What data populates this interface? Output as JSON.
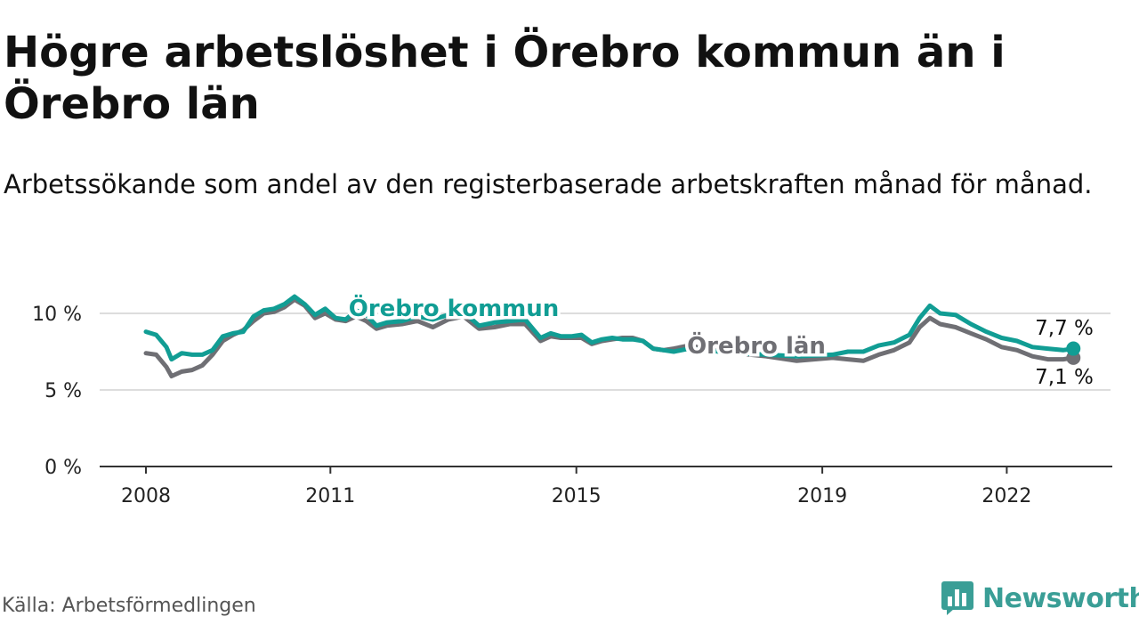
{
  "title": "Högre arbetslöshet i Örebro kommun än i Örebro län",
  "subtitle": "Arbetssökande som andel av den registerbaserade arbetskraften månad för månad.",
  "source": "Källa: Arbetsförmedlingen",
  "brand": "Newsworthy",
  "colors": {
    "kommun": "#119d94",
    "lan": "#6f6f74",
    "grid": "#dddddd",
    "axis": "#333333",
    "brand": "#3a9e96"
  },
  "chart_data": {
    "type": "line",
    "title": "Högre arbetslöshet i Örebro kommun än i Örebro län",
    "subtitle": "Arbetssökande som andel av den registerbaserade arbetskraften månad för månad.",
    "xlabel": "",
    "ylabel": "",
    "x_ticks": [
      "2008",
      "2011",
      "2015",
      "2019",
      "2022"
    ],
    "y_ticks": [
      "0 %",
      "5 %",
      "10 %"
    ],
    "ylim": [
      0,
      12
    ],
    "grid": true,
    "series": [
      {
        "name": "Örebro kommun",
        "end_label": "7,7 %",
        "points": [
          [
            "2008-01",
            8.8
          ],
          [
            "2008-03",
            8.6
          ],
          [
            "2008-05",
            7.8
          ],
          [
            "2008-06",
            7.0
          ],
          [
            "2008-08",
            7.4
          ],
          [
            "2008-10",
            7.3
          ],
          [
            "2008-12",
            7.3
          ],
          [
            "2009-02",
            7.6
          ],
          [
            "2009-04",
            8.5
          ],
          [
            "2009-06",
            8.7
          ],
          [
            "2009-08",
            8.8
          ],
          [
            "2009-10",
            9.8
          ],
          [
            "2009-12",
            10.2
          ],
          [
            "2010-02",
            10.3
          ],
          [
            "2010-04",
            10.6
          ],
          [
            "2010-06",
            11.1
          ],
          [
            "2010-08",
            10.6
          ],
          [
            "2010-10",
            9.9
          ],
          [
            "2010-12",
            10.3
          ],
          [
            "2011-02",
            9.7
          ],
          [
            "2011-04",
            9.6
          ],
          [
            "2011-06",
            10.2
          ],
          [
            "2011-08",
            9.9
          ],
          [
            "2011-10",
            9.2
          ],
          [
            "2011-12",
            9.4
          ],
          [
            "2012-03",
            9.5
          ],
          [
            "2012-06",
            9.8
          ],
          [
            "2012-09",
            9.6
          ],
          [
            "2012-12",
            9.9
          ],
          [
            "2013-03",
            10.1
          ],
          [
            "2013-06",
            9.2
          ],
          [
            "2013-09",
            9.4
          ],
          [
            "2013-12",
            9.5
          ],
          [
            "2014-03",
            9.6
          ],
          [
            "2014-06",
            8.4
          ],
          [
            "2014-08",
            8.7
          ],
          [
            "2014-10",
            8.5
          ],
          [
            "2014-12",
            8.5
          ],
          [
            "2015-02",
            8.6
          ],
          [
            "2015-04",
            8.1
          ],
          [
            "2015-06",
            8.3
          ],
          [
            "2015-08",
            8.4
          ],
          [
            "2015-10",
            8.3
          ],
          [
            "2015-12",
            8.3
          ],
          [
            "2016-02",
            8.2
          ],
          [
            "2016-04",
            7.7
          ],
          [
            "2016-06",
            7.6
          ],
          [
            "2016-08",
            7.5
          ],
          [
            "2016-11",
            7.7
          ],
          [
            "2017-02",
            7.6
          ],
          [
            "2017-08",
            7.4
          ],
          [
            "2018-02",
            7.3
          ],
          [
            "2018-08",
            7.2
          ],
          [
            "2019-03",
            7.3
          ],
          [
            "2019-06",
            7.5
          ],
          [
            "2019-09",
            7.5
          ],
          [
            "2019-12",
            7.9
          ],
          [
            "2020-03",
            8.1
          ],
          [
            "2020-06",
            8.6
          ],
          [
            "2020-08",
            9.7
          ],
          [
            "2020-10",
            10.5
          ],
          [
            "2020-12",
            10.0
          ],
          [
            "2021-03",
            9.9
          ],
          [
            "2021-06",
            9.3
          ],
          [
            "2021-09",
            8.8
          ],
          [
            "2021-12",
            8.4
          ],
          [
            "2022-03",
            8.2
          ],
          [
            "2022-06",
            7.8
          ],
          [
            "2022-09",
            7.7
          ],
          [
            "2022-12",
            7.6
          ],
          [
            "2023-02",
            7.7
          ]
        ]
      },
      {
        "name": "Örebro län",
        "end_label": "7,1 %",
        "points": [
          [
            "2008-01",
            7.4
          ],
          [
            "2008-03",
            7.3
          ],
          [
            "2008-05",
            6.5
          ],
          [
            "2008-06",
            5.9
          ],
          [
            "2008-08",
            6.2
          ],
          [
            "2008-10",
            6.3
          ],
          [
            "2008-12",
            6.6
          ],
          [
            "2009-02",
            7.3
          ],
          [
            "2009-04",
            8.2
          ],
          [
            "2009-06",
            8.6
          ],
          [
            "2009-08",
            8.9
          ],
          [
            "2009-10",
            9.5
          ],
          [
            "2009-12",
            10.0
          ],
          [
            "2010-02",
            10.1
          ],
          [
            "2010-04",
            10.4
          ],
          [
            "2010-06",
            10.9
          ],
          [
            "2010-08",
            10.5
          ],
          [
            "2010-10",
            9.7
          ],
          [
            "2010-12",
            10.0
          ],
          [
            "2011-02",
            9.6
          ],
          [
            "2011-04",
            9.5
          ],
          [
            "2011-06",
            9.8
          ],
          [
            "2011-08",
            9.5
          ],
          [
            "2011-10",
            9.0
          ],
          [
            "2011-12",
            9.2
          ],
          [
            "2012-03",
            9.3
          ],
          [
            "2012-06",
            9.5
          ],
          [
            "2012-09",
            9.1
          ],
          [
            "2012-12",
            9.6
          ],
          [
            "2013-03",
            9.8
          ],
          [
            "2013-06",
            9.0
          ],
          [
            "2013-09",
            9.1
          ],
          [
            "2013-12",
            9.3
          ],
          [
            "2014-03",
            9.3
          ],
          [
            "2014-06",
            8.2
          ],
          [
            "2014-08",
            8.5
          ],
          [
            "2014-10",
            8.4
          ],
          [
            "2014-12",
            8.4
          ],
          [
            "2015-02",
            8.4
          ],
          [
            "2015-04",
            8.0
          ],
          [
            "2015-06",
            8.2
          ],
          [
            "2015-08",
            8.3
          ],
          [
            "2015-10",
            8.4
          ],
          [
            "2015-12",
            8.4
          ],
          [
            "2016-02",
            8.2
          ],
          [
            "2016-04",
            7.7
          ],
          [
            "2016-06",
            7.6
          ],
          [
            "2016-08",
            7.7
          ],
          [
            "2016-11",
            7.9
          ],
          [
            "2017-02",
            7.7
          ],
          [
            "2017-08",
            7.4
          ],
          [
            "2018-02",
            7.2
          ],
          [
            "2018-08",
            6.9
          ],
          [
            "2019-03",
            7.1
          ],
          [
            "2019-06",
            7.0
          ],
          [
            "2019-09",
            6.9
          ],
          [
            "2019-12",
            7.3
          ],
          [
            "2020-03",
            7.6
          ],
          [
            "2020-06",
            8.1
          ],
          [
            "2020-08",
            9.1
          ],
          [
            "2020-10",
            9.7
          ],
          [
            "2020-12",
            9.3
          ],
          [
            "2021-03",
            9.1
          ],
          [
            "2021-06",
            8.7
          ],
          [
            "2021-09",
            8.3
          ],
          [
            "2021-12",
            7.8
          ],
          [
            "2022-03",
            7.6
          ],
          [
            "2022-06",
            7.2
          ],
          [
            "2022-09",
            7.0
          ],
          [
            "2022-12",
            7.0
          ],
          [
            "2023-02",
            7.1
          ]
        ]
      }
    ]
  }
}
